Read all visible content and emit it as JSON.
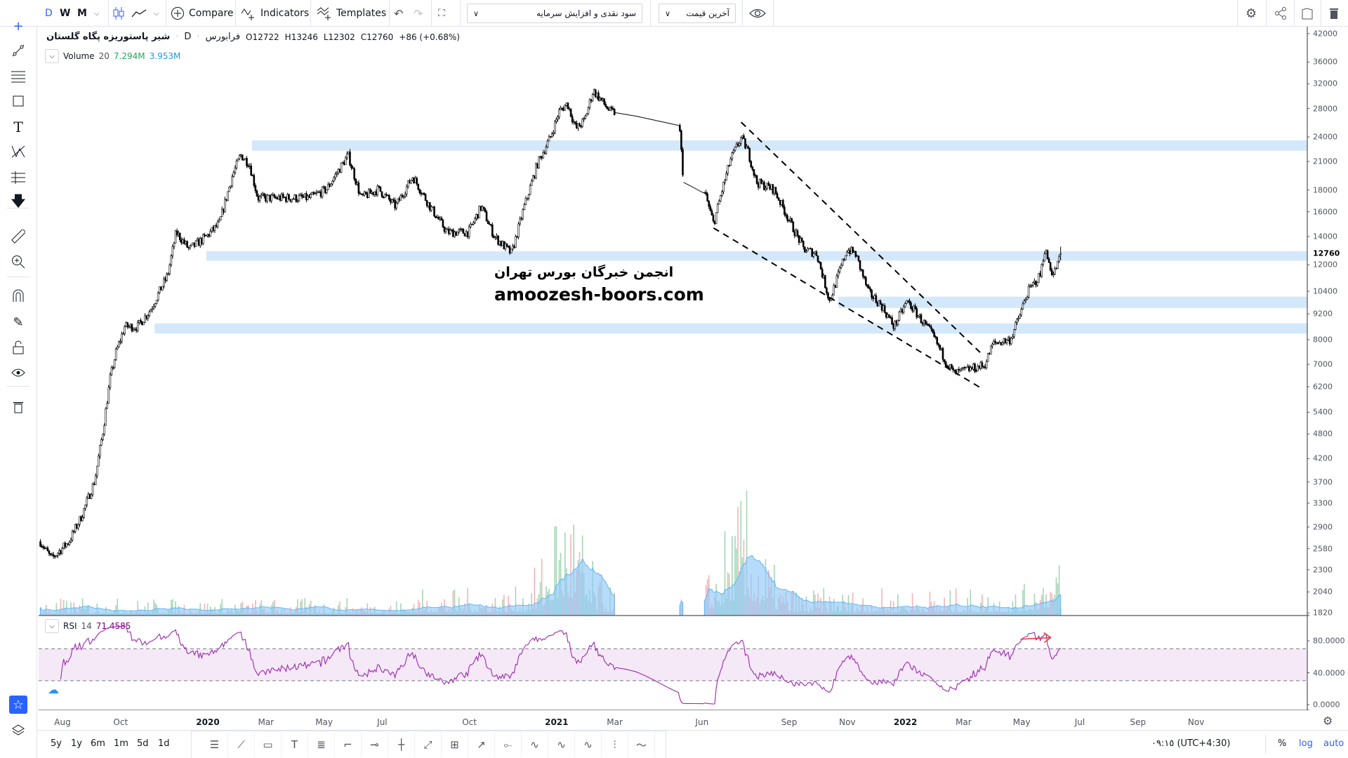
{
  "toolbar": {
    "intervals": [
      "D",
      "W",
      "M"
    ],
    "compare": "Compare",
    "indicators": "Indicators",
    "templates": "Templates",
    "dividend_adjust_select": "سود نقدی و افزایش سرمایه",
    "price_type_select": "آخرین قیمت"
  },
  "legend": {
    "symbol_name": "شیر پاستوریزه پگاه گلستان",
    "interval": "D",
    "exchange": "فرابورس",
    "open": "O12722",
    "high": "H13246",
    "low": "L12302",
    "close": "C12760",
    "change": "+86 (+0.68%)",
    "volume_label": "Volume",
    "volume_period": "20",
    "volume_value": "7.294M",
    "volume_ma": "3.953M",
    "rsi_label": "RSI",
    "rsi_period": "14",
    "rsi_value": "71.4585"
  },
  "watermark": {
    "line1": "انجمن خبرگان بورس تهران",
    "line2": "amoozesh-boors.com"
  },
  "bottom": {
    "ranges": [
      "5y",
      "1y",
      "6m",
      "1m",
      "5d",
      "1d"
    ],
    "timezone": "٠٩:١٥ (UTC+4:30)",
    "percent": "%",
    "log": "log",
    "auto": "auto"
  },
  "colors": {
    "accent": "#2962ff",
    "zone": "#d4e8fb",
    "volume_up": "#a5d6b5",
    "volume_down": "#f6b3b7",
    "volume_ma": "#90caf9",
    "rsi": "#9c27b0",
    "arrow": "#e53935"
  },
  "chart_data": {
    "type": "candlestick",
    "scale": "log",
    "time_unit": "months since Aug 2019",
    "current_price": 12760,
    "last_bar": {
      "open": 12722,
      "high": 13246,
      "low": 12302,
      "close": 12760
    },
    "price_waypoints": [
      [
        -0.76,
        2679
      ],
      [
        -0.38,
        2441
      ],
      [
        0.22,
        2679
      ],
      [
        0.66,
        3081
      ],
      [
        1.1,
        3711
      ],
      [
        1.4,
        4908
      ],
      [
        1.64,
        6492
      ],
      [
        1.84,
        7467
      ],
      [
        2.14,
        8587
      ],
      [
        2.58,
        8587
      ],
      [
        3.03,
        9419
      ],
      [
        3.32,
        10338
      ],
      [
        3.62,
        11346
      ],
      [
        3.91,
        14320
      ],
      [
        4.36,
        13050
      ],
      [
        4.95,
        13990
      ],
      [
        5.39,
        14990
      ],
      [
        5.84,
        19390
      ],
      [
        6.13,
        21770
      ],
      [
        6.43,
        20760
      ],
      [
        6.72,
        17240
      ],
      [
        7.61,
        17240
      ],
      [
        8.5,
        17240
      ],
      [
        9.09,
        18080
      ],
      [
        9.83,
        21770
      ],
      [
        10.27,
        17240
      ],
      [
        10.87,
        18080
      ],
      [
        11.46,
        16470
      ],
      [
        12.05,
        19390
      ],
      [
        12.64,
        16470
      ],
      [
        13.23,
        14320
      ],
      [
        13.97,
        14320
      ],
      [
        14.41,
        16470
      ],
      [
        14.86,
        13990
      ],
      [
        15.45,
        12760
      ],
      [
        15.89,
        16470
      ],
      [
        16.34,
        20760
      ],
      [
        16.78,
        23900
      ],
      [
        17.08,
        27490
      ],
      [
        17.37,
        28780
      ],
      [
        17.67,
        25060
      ],
      [
        17.96,
        26240
      ],
      [
        18.26,
        30880
      ],
      [
        18.85,
        27490
      ],
      [
        19.74,
        26850
      ],
      [
        21.22,
        25520
      ],
      [
        21.37,
        18760
      ],
      [
        22.11,
        17640
      ],
      [
        22.4,
        14990
      ],
      [
        22.7,
        18080
      ],
      [
        22.99,
        21270
      ],
      [
        23.35,
        23900
      ],
      [
        23.58,
        22280
      ],
      [
        23.88,
        18760
      ],
      [
        24.47,
        18080
      ],
      [
        24.77,
        16470
      ],
      [
        25.06,
        14990
      ],
      [
        25.51,
        13050
      ],
      [
        25.95,
        12760
      ],
      [
        26.39,
        9870
      ],
      [
        26.69,
        11346
      ],
      [
        26.99,
        13050
      ],
      [
        27.28,
        12760
      ],
      [
        27.73,
        10338
      ],
      [
        28.17,
        9650
      ],
      [
        28.61,
        8587
      ],
      [
        29.06,
        9870
      ],
      [
        29.5,
        9000
      ],
      [
        29.94,
        8200
      ],
      [
        30.39,
        7120
      ],
      [
        30.68,
        6650
      ],
      [
        31.13,
        6800
      ],
      [
        31.72,
        6960
      ],
      [
        32.01,
        7830
      ],
      [
        32.61,
        8010
      ],
      [
        32.9,
        9000
      ],
      [
        33.2,
        10338
      ],
      [
        33.64,
        11346
      ],
      [
        33.79,
        13050
      ],
      [
        34.08,
        11346
      ],
      [
        34.38,
        12760
      ]
    ],
    "halted_ranges": [
      [
        19.0,
        21.22
      ],
      [
        21.37,
        22.05
      ]
    ],
    "zones": [
      {
        "start": 6.52,
        "low": 22280,
        "high": 23560
      },
      {
        "start": 4.95,
        "low": 12270,
        "high": 12920
      },
      {
        "start": 26.69,
        "low": 9500,
        "high": 10100
      },
      {
        "start": 3.17,
        "low": 8270,
        "high": 8740
      }
    ],
    "trendlines": [
      {
        "from": [
          23.35,
          25990
        ],
        "to": [
          31.57,
          7467
        ],
        "style": "dashed"
      },
      {
        "from": [
          22.4,
          14650
        ],
        "to": [
          31.63,
          6140
        ],
        "style": "dashed"
      }
    ],
    "rsi_arrow": {
      "from": [
        32.96,
        82
      ],
      "to": [
        34.0,
        84
      ]
    },
    "price_axis": {
      "ticks": [
        42000,
        36000,
        32000,
        28000,
        24000,
        21000,
        18000,
        16000,
        14000,
        12000,
        10400,
        9200,
        8000,
        7000,
        6200,
        5400,
        4800,
        4200,
        3700,
        3300,
        2900,
        2580,
        2300,
        2040,
        1820
      ]
    },
    "rsi_axis": {
      "ticks": [
        "80.0000",
        "40.0000",
        "0.0000"
      ],
      "tick_values": [
        80,
        40,
        0
      ],
      "bands": [
        30,
        70
      ]
    },
    "time_axis": [
      {
        "label": "Aug",
        "m": 0,
        "bold": false
      },
      {
        "label": "Oct",
        "m": 2,
        "bold": false
      },
      {
        "label": "2020",
        "m": 5,
        "bold": true
      },
      {
        "label": "Mar",
        "m": 7,
        "bold": false
      },
      {
        "label": "May",
        "m": 9,
        "bold": false
      },
      {
        "label": "Jul",
        "m": 11,
        "bold": false
      },
      {
        "label": "Oct",
        "m": 14,
        "bold": false
      },
      {
        "label": "2021",
        "m": 17,
        "bold": true
      },
      {
        "label": "Mar",
        "m": 19,
        "bold": false
      },
      {
        "label": "Jun",
        "m": 22,
        "bold": false
      },
      {
        "label": "Sep",
        "m": 25,
        "bold": false
      },
      {
        "label": "Nov",
        "m": 27,
        "bold": false
      },
      {
        "label": "2022",
        "m": 29,
        "bold": true
      },
      {
        "label": "Mar",
        "m": 31,
        "bold": false
      },
      {
        "label": "May",
        "m": 33,
        "bold": false
      },
      {
        "label": "Jul",
        "m": 35,
        "bold": false
      },
      {
        "label": "Sep",
        "m": 37,
        "bold": false
      },
      {
        "label": "Nov",
        "m": 39,
        "bold": false
      }
    ]
  }
}
